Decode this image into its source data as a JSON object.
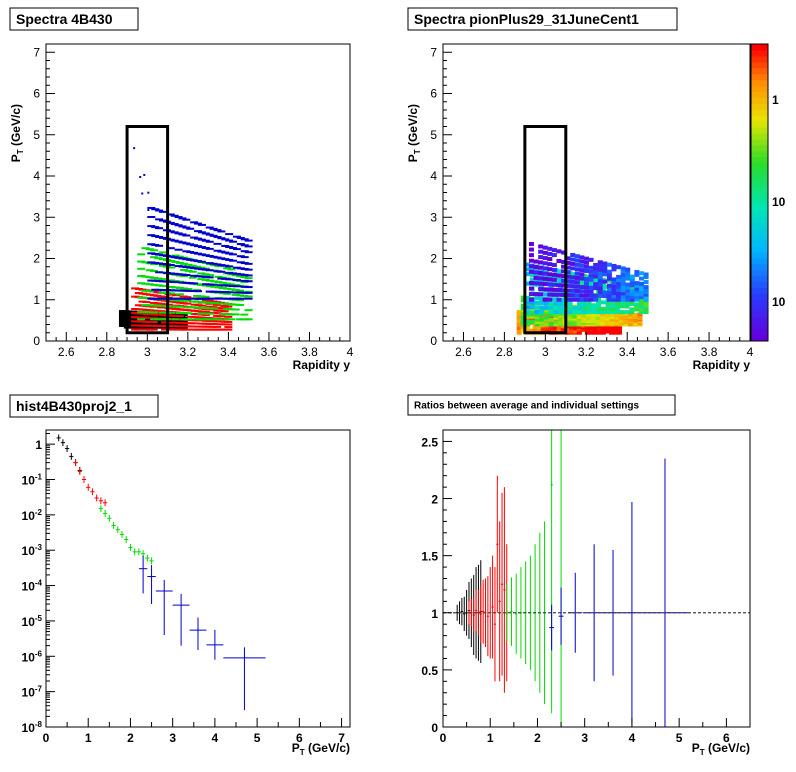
{
  "chart_data": [
    {
      "type": "scatter",
      "title": "Spectra 4B430",
      "xlabel": "Rapidity y",
      "ylabel": "P_T (GeV/c)",
      "xlim": [
        2.5,
        4.0
      ],
      "ylim": [
        0,
        7.2
      ],
      "xticks": [
        "2.6",
        "2.8",
        "3",
        "3.2",
        "3.4",
        "3.6",
        "3.8",
        "4"
      ],
      "yticks": [
        "0",
        "1",
        "2",
        "3",
        "4",
        "5",
        "6",
        "7"
      ],
      "colors": {
        "black": "#000000",
        "red": "#ff0000",
        "green": "#00dd00",
        "blue": "#0000cc"
      },
      "bands": [
        {
          "color": "black",
          "y0": 2.86,
          "y1": 3.16,
          "pt0": 0.35,
          "pt1": 0.75,
          "slope": -0.6
        },
        {
          "color": "red",
          "y0": 2.92,
          "y1": 3.38,
          "pt0": 0.3,
          "pt1": 1.3,
          "slope": -1.5
        },
        {
          "color": "green",
          "y0": 2.95,
          "y1": 3.48,
          "pt0": 0.55,
          "pt1": 2.3,
          "slope": -2.2
        },
        {
          "color": "blue",
          "y0": 3.0,
          "y1": 3.48,
          "pt0": 1.05,
          "pt1": 3.25,
          "slope": -3.0
        }
      ],
      "box": {
        "ymin": 2.9,
        "ymax": 3.1,
        "ptmin": 0.2,
        "ptmax": 5.2
      }
    },
    {
      "type": "heatmap",
      "title": "Spectra pionPlus29_31JuneCent1",
      "xlabel": "Rapidity y",
      "ylabel": "P_T (GeV/c)",
      "xlim": [
        2.5,
        4.0
      ],
      "ylim": [
        0,
        7.2
      ],
      "xticks": [
        "2.6",
        "2.8",
        "3",
        "3.2",
        "3.4",
        "3.6",
        "3.8",
        "4"
      ],
      "yticks": [
        "0",
        "1",
        "2",
        "3",
        "4",
        "5",
        "6",
        "7"
      ],
      "z_scale": "log",
      "colorbar_labels": [
        "1",
        "10",
        "10"
      ],
      "bands": [
        {
          "y0": 2.86,
          "y1": 3.35,
          "pt0": 0.25,
          "pt1": 0.75,
          "slope": -0.9,
          "level": 0.97
        },
        {
          "y0": 2.88,
          "y1": 3.45,
          "pt0": 0.45,
          "pt1": 1.1,
          "slope": -1.3,
          "level": 0.72
        },
        {
          "y0": 2.9,
          "y1": 3.48,
          "pt0": 0.75,
          "pt1": 1.9,
          "slope": -1.8,
          "level": 0.45
        },
        {
          "y0": 2.92,
          "y1": 3.48,
          "pt0": 1.05,
          "pt1": 2.4,
          "slope": -2.4,
          "level": 0.12
        }
      ],
      "box": {
        "ymin": 2.9,
        "ymax": 3.1,
        "ptmin": 0.2,
        "ptmax": 5.2
      }
    },
    {
      "type": "scatter",
      "title": "hist4B430proj2_1",
      "xlabel": "P_T (GeV/c)",
      "ylabel": "",
      "xlim": [
        0,
        7.2
      ],
      "ylim_log10": [
        -8,
        0.4
      ],
      "y_scale": "log",
      "xticks": [
        "0",
        "1",
        "2",
        "3",
        "4",
        "5",
        "6",
        "7"
      ],
      "series": [
        {
          "color": "black",
          "x": [
            0.3,
            0.4,
            0.5,
            0.6,
            0.7,
            0.8
          ],
          "y": [
            1.5,
            1.1,
            0.75,
            0.45,
            0.3,
            0.18
          ],
          "xerr": 0.05
        },
        {
          "color": "red",
          "x": [
            0.7,
            0.8,
            0.9,
            1.0,
            1.1,
            1.2,
            1.3,
            1.4
          ],
          "y": [
            0.3,
            0.17,
            0.1,
            0.06,
            0.045,
            0.03,
            0.025,
            0.022
          ],
          "xerr": 0.05
        },
        {
          "color": "green",
          "x": [
            1.3,
            1.4,
            1.5,
            1.6,
            1.7,
            1.8,
            1.9,
            2.0,
            2.1,
            2.2,
            2.3,
            2.4,
            2.5
          ],
          "y": [
            0.015,
            0.011,
            0.008,
            0.005,
            0.0038,
            0.0028,
            0.002,
            0.0012,
            0.0009,
            0.0009,
            0.0008,
            0.0006,
            0.0005
          ],
          "xerr": 0.05
        },
        {
          "color": "blue",
          "x": [
            2.3,
            2.5,
            2.8,
            3.2,
            3.6,
            4.0,
            4.7
          ],
          "y": [
            0.0003,
            0.00018,
            7e-05,
            2.8e-05,
            5.5e-06,
            2.1e-06,
            9e-07
          ],
          "xerr": [
            0.1,
            0.1,
            0.2,
            0.2,
            0.2,
            0.2,
            0.5
          ],
          "yerr_lo": [
            0.00024,
            0.00015,
            6.6e-05,
            2.6e-05,
            4e-06,
            1.3e-06,
            8.7e-07
          ],
          "yerr_hi": [
            0.0004,
            0.0002,
            7.5e-05,
            3e-05,
            7e-06,
            3.5e-06,
            9e-07
          ]
        }
      ]
    },
    {
      "type": "scatter",
      "title": "Ratios between average and individual settings",
      "xlabel": "P_T (GeV/c)",
      "ylabel": "",
      "xlim": [
        0,
        6.5
      ],
      "ylim": [
        0,
        2.6
      ],
      "xticks": [
        "0",
        "1",
        "2",
        "3",
        "4",
        "5",
        "6"
      ],
      "yticks": [
        "0",
        "0.5",
        "1",
        "1.5",
        "2",
        "2.5"
      ],
      "reference_line": 1.0,
      "series": [
        {
          "color": "black",
          "x": [
            0.3,
            0.35,
            0.4,
            0.45,
            0.5,
            0.55,
            0.6,
            0.65,
            0.7,
            0.75,
            0.8
          ],
          "y": [
            1.0,
            1.0,
            1.01,
            0.99,
            1.0,
            1.02,
            1.0,
            0.98,
            1.0,
            1.0,
            1.01
          ],
          "err": [
            0.07,
            0.1,
            0.12,
            0.15,
            0.2,
            0.25,
            0.3,
            0.35,
            0.4,
            0.42,
            0.45
          ]
        },
        {
          "color": "red",
          "x": [
            0.55,
            0.6,
            0.65,
            0.7,
            0.75,
            0.8,
            0.85,
            0.9,
            0.95,
            1.0,
            1.05,
            1.1,
            1.15,
            1.2,
            1.25,
            1.3,
            1.35
          ],
          "y": [
            1.0,
            1.0,
            0.98,
            1.02,
            1.0,
            0.99,
            1.01,
            1.0,
            0.97,
            1.0,
            1.05,
            0.9,
            1.6,
            1.1,
            1.25,
            1.2,
            1.0
          ],
          "err": [
            0.1,
            0.12,
            0.15,
            0.18,
            0.2,
            0.25,
            0.28,
            0.3,
            0.35,
            0.4,
            0.45,
            0.5,
            0.6,
            0.7,
            0.8,
            0.9,
            0.6
          ]
        },
        {
          "color": "green",
          "x": [
            1.35,
            1.45,
            1.55,
            1.65,
            1.75,
            1.85,
            1.95,
            2.05,
            2.15,
            2.3,
            2.5
          ],
          "y": [
            1.0,
            1.01,
            0.99,
            1.0,
            1.0,
            1.0,
            1.0,
            1.0,
            1.0,
            2.12,
            1.0
          ],
          "err": [
            0.25,
            0.3,
            0.35,
            0.4,
            0.45,
            0.5,
            0.6,
            0.7,
            0.8,
            2.0,
            3.0
          ]
        },
        {
          "color": "blue",
          "x": [
            2.3,
            2.5,
            2.8,
            3.2,
            3.6,
            4.0,
            4.7
          ],
          "y": [
            0.87,
            0.97,
            1.0,
            1.0,
            1.0,
            1.0,
            1.0
          ],
          "xerr": [
            0.05,
            0.05,
            0.15,
            0.2,
            0.2,
            0.2,
            0.5
          ],
          "err": [
            0.2,
            0.25,
            0.35,
            0.6,
            0.55,
            0.97,
            1.35
          ]
        }
      ]
    }
  ]
}
